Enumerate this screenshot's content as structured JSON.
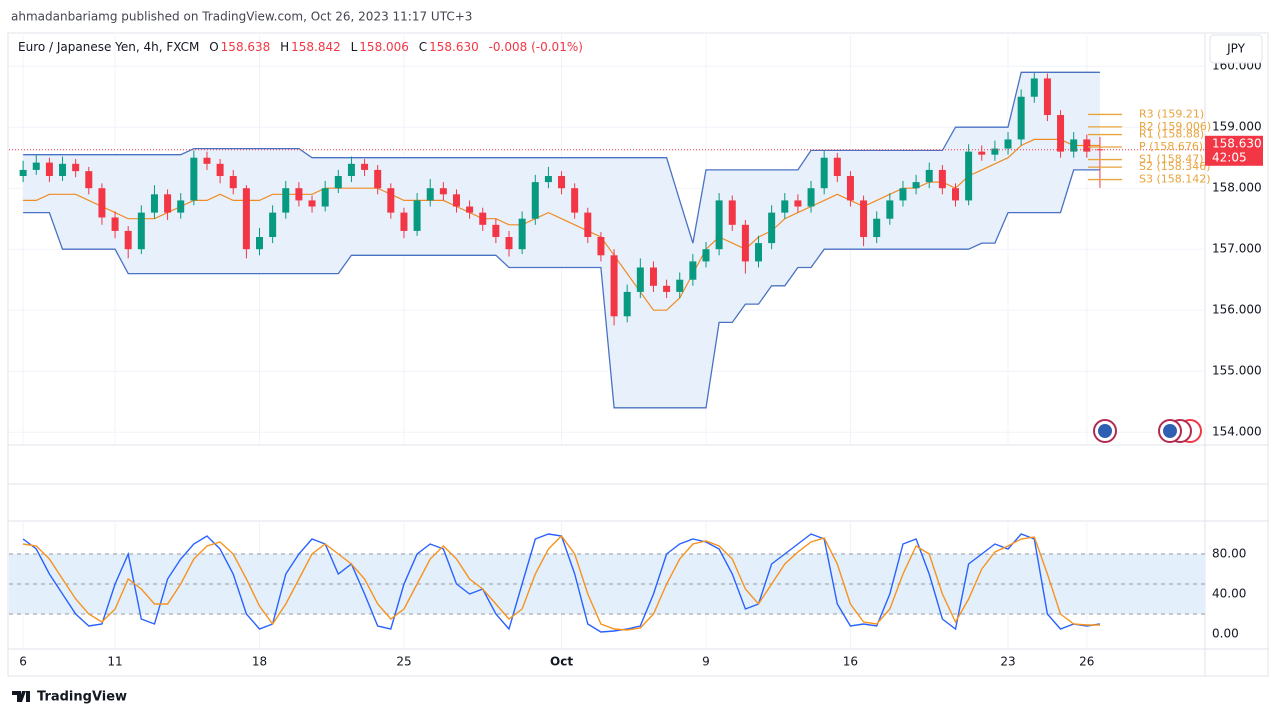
{
  "header": {
    "publisher": "ahmadanbariamg published on TradingView.com, Oct 26, 2023 11:17 UTC+3",
    "symbol": "Euro / Japanese Yen, 4h, FXCM",
    "ohlc": [
      {
        "key": "O",
        "text": "158.638"
      },
      {
        "key": "H",
        "text": "158.842"
      },
      {
        "key": "L",
        "text": "158.006"
      },
      {
        "key": "C",
        "text": "158.630"
      }
    ],
    "change": "-0.008 (-0.01%)",
    "currency": "JPY"
  },
  "chart_data": [
    {
      "type": "candlestick",
      "up_color": "#089981",
      "down_color": "#f23645",
      "open": [
        158.2,
        158.3,
        158.42,
        158.2,
        158.4,
        158.28,
        158.0,
        157.52,
        157.3,
        157.0,
        157.6,
        157.9,
        157.6,
        157.8,
        158.5,
        158.4,
        158.2,
        158.0,
        157.0,
        157.2,
        157.6,
        158.0,
        157.8,
        157.7,
        158.0,
        158.2,
        158.4,
        158.3,
        158.0,
        157.6,
        157.3,
        157.8,
        158.0,
        157.9,
        157.7,
        157.6,
        157.4,
        157.2,
        157.0,
        157.5,
        158.1,
        158.2,
        158.0,
        157.6,
        157.2,
        156.9,
        155.9,
        156.3,
        156.7,
        156.4,
        156.3,
        156.5,
        156.8,
        157.0,
        157.8,
        157.4,
        156.8,
        157.1,
        157.6,
        157.8,
        157.7,
        158.0,
        158.5,
        158.2,
        157.8,
        157.2,
        157.5,
        157.8,
        158.0,
        158.1,
        158.3,
        158.0,
        157.8,
        158.6,
        158.55,
        158.65,
        158.8,
        159.5,
        159.8,
        159.2,
        158.6,
        158.8,
        158.638
      ],
      "high": [
        158.45,
        158.55,
        158.5,
        158.52,
        158.48,
        158.35,
        158.08,
        157.62,
        157.38,
        157.72,
        158.05,
        157.98,
        157.92,
        158.62,
        158.6,
        158.48,
        158.3,
        158.05,
        157.35,
        157.72,
        158.12,
        158.1,
        157.88,
        158.12,
        158.3,
        158.52,
        158.48,
        158.38,
        158.08,
        157.68,
        157.92,
        158.15,
        158.1,
        157.98,
        157.8,
        157.68,
        157.5,
        157.3,
        157.62,
        158.22,
        158.35,
        158.28,
        158.08,
        157.68,
        157.28,
        157.0,
        156.42,
        156.85,
        156.8,
        156.5,
        156.62,
        156.92,
        157.12,
        157.92,
        157.88,
        157.48,
        157.22,
        157.72,
        157.92,
        157.9,
        158.12,
        158.62,
        158.58,
        158.28,
        157.88,
        157.62,
        157.92,
        158.12,
        158.22,
        158.42,
        158.38,
        158.08,
        158.72,
        158.7,
        158.78,
        158.92,
        159.62,
        159.9,
        159.88,
        159.28,
        158.92,
        158.88,
        158.842
      ],
      "low": [
        158.1,
        158.22,
        158.1,
        158.12,
        158.18,
        157.9,
        157.4,
        157.18,
        156.85,
        156.92,
        157.5,
        157.48,
        157.5,
        157.72,
        158.3,
        158.08,
        157.9,
        156.85,
        156.9,
        157.1,
        157.5,
        157.7,
        157.6,
        157.62,
        157.92,
        158.1,
        158.2,
        157.9,
        157.5,
        157.18,
        157.22,
        157.7,
        157.8,
        157.6,
        157.5,
        157.3,
        157.1,
        156.88,
        156.92,
        157.4,
        158.0,
        157.9,
        157.5,
        157.1,
        156.8,
        155.75,
        155.8,
        156.2,
        156.3,
        156.2,
        156.2,
        156.4,
        156.7,
        156.9,
        157.3,
        156.6,
        156.7,
        157.0,
        157.5,
        157.6,
        157.6,
        157.9,
        158.1,
        157.7,
        157.05,
        157.1,
        157.4,
        157.7,
        157.9,
        158.0,
        157.9,
        157.7,
        157.72,
        158.45,
        158.45,
        158.55,
        158.7,
        159.4,
        159.1,
        158.5,
        158.5,
        158.5,
        158.006
      ],
      "close": [
        158.3,
        158.42,
        158.2,
        158.4,
        158.28,
        158.0,
        157.52,
        157.3,
        157.0,
        157.6,
        157.9,
        157.6,
        157.8,
        158.5,
        158.4,
        158.2,
        158.0,
        157.0,
        157.2,
        157.6,
        158.0,
        157.8,
        157.7,
        158.0,
        158.2,
        158.4,
        158.3,
        158.0,
        157.6,
        157.3,
        157.8,
        158.0,
        157.9,
        157.7,
        157.6,
        157.4,
        157.2,
        157.0,
        157.5,
        158.1,
        158.2,
        158.0,
        157.6,
        157.2,
        156.9,
        155.9,
        156.3,
        156.7,
        156.4,
        156.3,
        156.5,
        156.8,
        157.0,
        157.8,
        157.4,
        156.8,
        157.1,
        157.6,
        157.8,
        157.7,
        158.0,
        158.5,
        158.2,
        157.8,
        157.2,
        157.5,
        157.8,
        158.0,
        158.1,
        158.3,
        158.0,
        157.8,
        158.6,
        158.55,
        158.65,
        158.8,
        159.5,
        159.8,
        159.2,
        158.6,
        158.8,
        158.6,
        158.63
      ],
      "bands": {
        "band_color": "#4a72c4",
        "fill_color": "#e8f1fb",
        "basis_color": "#f08a24",
        "upper": [
          158.55,
          158.55,
          158.55,
          158.55,
          158.55,
          158.55,
          158.55,
          158.55,
          158.55,
          158.55,
          158.55,
          158.55,
          158.55,
          158.65,
          158.65,
          158.65,
          158.65,
          158.65,
          158.65,
          158.65,
          158.65,
          158.65,
          158.5,
          158.5,
          158.5,
          158.5,
          158.5,
          158.5,
          158.5,
          158.5,
          158.5,
          158.5,
          158.5,
          158.5,
          158.5,
          158.5,
          158.5,
          158.5,
          158.5,
          158.5,
          158.5,
          158.5,
          158.5,
          158.5,
          158.5,
          158.5,
          158.5,
          158.5,
          158.5,
          158.5,
          157.8,
          157.1,
          158.3,
          158.3,
          158.3,
          158.3,
          158.3,
          158.3,
          158.3,
          158.3,
          158.62,
          158.62,
          158.62,
          158.62,
          158.62,
          158.62,
          158.62,
          158.62,
          158.62,
          158.62,
          158.62,
          159.0,
          159.0,
          159.0,
          159.0,
          159.0,
          159.9,
          159.9,
          159.9,
          159.9,
          159.9,
          159.9,
          159.9
        ],
        "lower": [
          157.6,
          157.6,
          157.6,
          157.0,
          157.0,
          157.0,
          157.0,
          157.0,
          156.6,
          156.6,
          156.6,
          156.6,
          156.6,
          156.6,
          156.6,
          156.6,
          156.6,
          156.6,
          156.6,
          156.6,
          156.6,
          156.6,
          156.6,
          156.6,
          156.6,
          156.9,
          156.9,
          156.9,
          156.9,
          156.9,
          156.9,
          156.9,
          156.9,
          156.9,
          156.9,
          156.9,
          156.9,
          156.7,
          156.7,
          156.7,
          156.7,
          156.7,
          156.7,
          156.7,
          156.7,
          154.4,
          154.4,
          154.4,
          154.4,
          154.4,
          154.4,
          154.4,
          154.4,
          155.8,
          155.8,
          156.1,
          156.1,
          156.4,
          156.4,
          156.7,
          156.7,
          157.0,
          157.0,
          157.0,
          157.0,
          157.0,
          157.0,
          157.0,
          157.0,
          157.0,
          157.0,
          157.0,
          157.0,
          157.1,
          157.1,
          157.6,
          157.6,
          157.6,
          157.6,
          157.6,
          158.3,
          158.3,
          158.3
        ],
        "basis": [
          157.8,
          157.8,
          157.9,
          157.9,
          157.9,
          157.8,
          157.7,
          157.6,
          157.5,
          157.5,
          157.5,
          157.6,
          157.7,
          157.8,
          157.8,
          157.9,
          157.8,
          157.8,
          157.8,
          157.9,
          157.9,
          157.9,
          157.9,
          158.0,
          158.0,
          158.0,
          158.0,
          158.0,
          157.9,
          157.8,
          157.8,
          157.8,
          157.8,
          157.7,
          157.6,
          157.5,
          157.5,
          157.4,
          157.4,
          157.5,
          157.6,
          157.5,
          157.4,
          157.3,
          157.2,
          156.9,
          156.6,
          156.3,
          156.0,
          156.0,
          156.2,
          156.6,
          157.0,
          157.2,
          157.1,
          157.0,
          157.2,
          157.3,
          157.5,
          157.6,
          157.7,
          157.8,
          157.9,
          157.8,
          157.7,
          157.8,
          157.9,
          158.0,
          158.0,
          158.1,
          158.1,
          158.0,
          158.2,
          158.3,
          158.4,
          158.5,
          158.7,
          158.8,
          158.8,
          158.8,
          158.7,
          158.7,
          158.7
        ]
      },
      "pivots": [
        {
          "label": "R3 (159.21)",
          "value": 159.21
        },
        {
          "label": "R2 (159.006)",
          "value": 159.006
        },
        {
          "label": "R1 (158.88)",
          "value": 158.88
        },
        {
          "label": "P (158.676)",
          "value": 158.676
        },
        {
          "label": "S1 (158.47)",
          "value": 158.47
        },
        {
          "label": "S2 (158.346)",
          "value": 158.346
        },
        {
          "label": "S3 (158.142)",
          "value": 158.142
        }
      ],
      "pivot_color": "#e8a33a",
      "last_price": {
        "value": 158.63,
        "label": "158.630",
        "countdown": "42:05"
      },
      "xlim": [
        -1,
        90
      ],
      "xticks": [
        {
          "value": 0,
          "label": "6"
        },
        {
          "value": 7,
          "label": "11"
        },
        {
          "value": 18,
          "label": "18"
        },
        {
          "value": 29,
          "label": "25"
        },
        {
          "value": 41,
          "label": "Oct"
        },
        {
          "value": 52,
          "label": "9"
        },
        {
          "value": 63,
          "label": "16"
        },
        {
          "value": 75,
          "label": "23"
        },
        {
          "value": 81,
          "label": "26"
        }
      ],
      "ylim": [
        153.79,
        160.43
      ],
      "yticks": [
        {
          "value": 154,
          "label": "154.000"
        },
        {
          "value": 155,
          "label": "155.000"
        },
        {
          "value": 156,
          "label": "156.000"
        },
        {
          "value": 157,
          "label": "157.000"
        },
        {
          "value": 158,
          "label": "158.000"
        },
        {
          "value": 159,
          "label": "159.000"
        },
        {
          "value": 160,
          "label": "160.000"
        }
      ],
      "grid": true
    },
    {
      "type": "line",
      "series": [
        {
          "color": "#2962ff",
          "values": [
            95,
            85,
            60,
            40,
            20,
            8,
            10,
            50,
            80,
            15,
            10,
            55,
            75,
            90,
            98,
            85,
            60,
            20,
            5,
            10,
            60,
            80,
            95,
            90,
            60,
            70,
            40,
            8,
            5,
            50,
            80,
            90,
            85,
            50,
            40,
            45,
            20,
            5,
            50,
            95,
            100,
            98,
            60,
            10,
            2,
            3,
            5,
            8,
            40,
            80,
            90,
            95,
            92,
            85,
            60,
            25,
            30,
            70,
            80,
            90,
            100,
            95,
            30,
            8,
            10,
            8,
            40,
            90,
            95,
            60,
            15,
            5,
            70,
            80,
            90,
            85,
            100,
            95,
            20,
            5,
            10,
            8,
            10
          ]
        },
        {
          "color": "#f7931e",
          "values": [
            90,
            88,
            75,
            55,
            35,
            20,
            12,
            25,
            55,
            45,
            30,
            30,
            50,
            75,
            88,
            92,
            80,
            55,
            28,
            10,
            30,
            55,
            80,
            90,
            80,
            70,
            55,
            30,
            15,
            25,
            50,
            75,
            88,
            75,
            55,
            45,
            30,
            15,
            25,
            60,
            85,
            98,
            80,
            40,
            10,
            5,
            4,
            6,
            20,
            50,
            75,
            90,
            93,
            88,
            75,
            45,
            30,
            50,
            70,
            82,
            92,
            96,
            70,
            30,
            12,
            10,
            25,
            60,
            88,
            80,
            40,
            12,
            35,
            65,
            82,
            88,
            95,
            97,
            60,
            20,
            10,
            9,
            9
          ]
        }
      ],
      "levels": [
        20,
        50,
        80
      ],
      "level_fill": "#e3effb",
      "xlim": [
        -1,
        90
      ],
      "ylim": [
        -14,
        112
      ],
      "yticks": [
        {
          "value": 0,
          "label": "0.00"
        },
        {
          "value": 40,
          "label": "40.00"
        },
        {
          "value": 80,
          "label": "80.00"
        }
      ]
    }
  ],
  "footer": {
    "brand": "TradingView"
  }
}
